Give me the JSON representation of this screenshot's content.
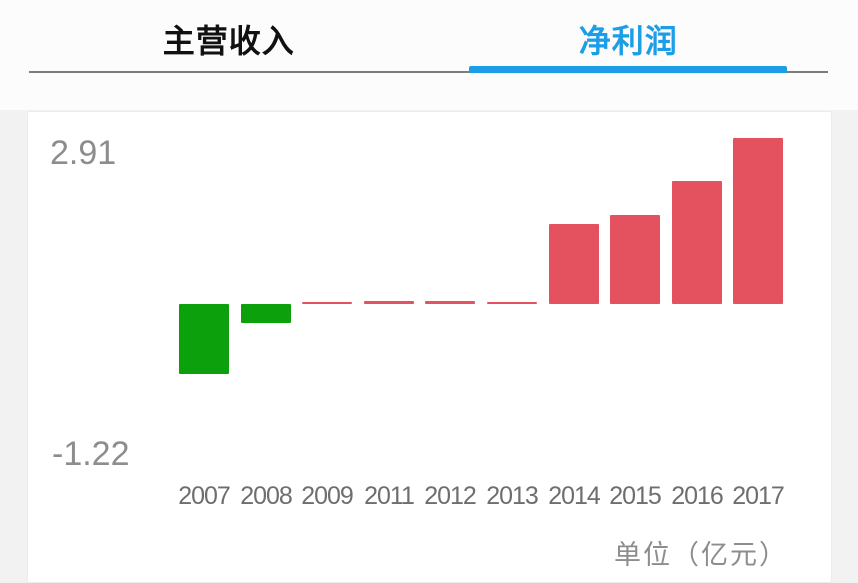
{
  "tabs": [
    {
      "label": "主营收入",
      "active": false
    },
    {
      "label": "净利润",
      "active": true
    }
  ],
  "colors": {
    "accent": "#1b9ee6",
    "positive": "#e4525f",
    "negative": "#0da00d",
    "tab_inactive_text": "#111111",
    "divider": "#7c7c7c"
  },
  "chart_data": {
    "type": "bar",
    "title": "净利润",
    "unit_label": "单位（亿元）",
    "categories": [
      "2007",
      "2008",
      "2009",
      "2011",
      "2012",
      "2013",
      "2014",
      "2015",
      "2016",
      "2017"
    ],
    "values": [
      -1.22,
      -0.33,
      0.02,
      0.06,
      0.06,
      0.03,
      1.4,
      1.56,
      2.16,
      2.91
    ],
    "ymax": 2.91,
    "ymin": -1.22,
    "ymax_label": "2.91",
    "ymin_label": "-1.22",
    "positive_color": "#e4525f",
    "negative_color": "#0da00d",
    "grid": false,
    "legend": false,
    "note": "red bars = positive values, green bars = negative values (CN convention); year 2010 not shown"
  }
}
